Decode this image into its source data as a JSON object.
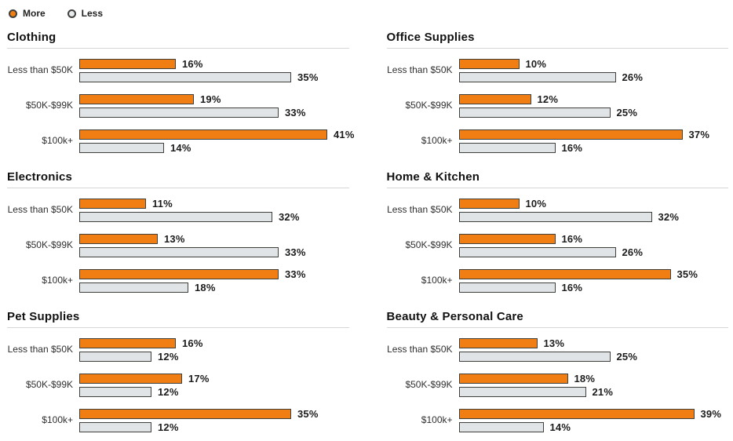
{
  "legend": {
    "items": [
      {
        "label": "More"
      },
      {
        "label": "Less"
      }
    ]
  },
  "colors": {
    "more": "#F07E12",
    "less": "#E1E4E6",
    "bar_border": "#3F3F3C",
    "divider": "#D6D6D6",
    "text": "#1C1C1C"
  },
  "chart_data": {
    "type": "bar",
    "orientation": "horizontal",
    "unit": "%",
    "legend": [
      "More",
      "Less"
    ],
    "legend_position": "top-left",
    "grid": false,
    "value_labels": true,
    "axis_range_percent": [
      0,
      43
    ],
    "categories": [
      "Less than $50K",
      "$50K-$99K",
      "$100k+"
    ],
    "panels": [
      {
        "title": "Clothing",
        "series": [
          {
            "name": "More",
            "values": [
              16,
              19,
              41
            ]
          },
          {
            "name": "Less",
            "values": [
              35,
              33,
              14
            ]
          }
        ]
      },
      {
        "title": "Office Supplies",
        "series": [
          {
            "name": "More",
            "values": [
              10,
              12,
              37
            ]
          },
          {
            "name": "Less",
            "values": [
              26,
              25,
              16
            ]
          }
        ]
      },
      {
        "title": "Electronics",
        "series": [
          {
            "name": "More",
            "values": [
              11,
              13,
              33
            ]
          },
          {
            "name": "Less",
            "values": [
              32,
              33,
              18
            ]
          }
        ]
      },
      {
        "title": "Home & Kitchen",
        "series": [
          {
            "name": "More",
            "values": [
              10,
              16,
              35
            ]
          },
          {
            "name": "Less",
            "values": [
              32,
              26,
              16
            ]
          }
        ]
      },
      {
        "title": "Pet Supplies",
        "series": [
          {
            "name": "More",
            "values": [
              16,
              17,
              35
            ]
          },
          {
            "name": "Less",
            "values": [
              12,
              12,
              12
            ]
          }
        ]
      },
      {
        "title": "Beauty & Personal Care",
        "series": [
          {
            "name": "More",
            "values": [
              13,
              18,
              39
            ]
          },
          {
            "name": "Less",
            "values": [
              25,
              21,
              14
            ]
          }
        ]
      }
    ]
  }
}
